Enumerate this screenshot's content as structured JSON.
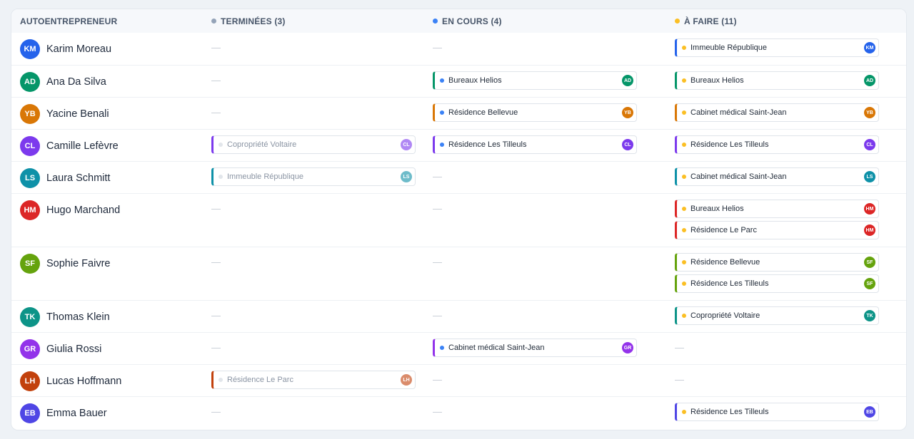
{
  "columns": {
    "person": {
      "label": "AUTOENTREPRENEUR"
    },
    "done": {
      "label": "TERMINÉES (3)",
      "color": "#94a3b8"
    },
    "progress": {
      "label": "EN COURS (4)",
      "color": "#3b82f6"
    },
    "todo": {
      "label": "À FAIRE (11)",
      "color": "#fbbf24"
    }
  },
  "empty_marker": "—",
  "people": [
    {
      "initials": "KM",
      "name": "Karim Moreau",
      "color": "#2563eb",
      "done": [],
      "progress": [],
      "todo": [
        "Immeuble République"
      ]
    },
    {
      "initials": "AD",
      "name": "Ana Da Silva",
      "color": "#059669",
      "done": [],
      "progress": [
        "Bureaux Helios"
      ],
      "todo": [
        "Bureaux Helios"
      ]
    },
    {
      "initials": "YB",
      "name": "Yacine Benali",
      "color": "#d97706",
      "done": [],
      "progress": [
        "Résidence Bellevue"
      ],
      "todo": [
        "Cabinet médical Saint-Jean"
      ]
    },
    {
      "initials": "CL",
      "name": "Camille Lefèvre",
      "color": "#7c3aed",
      "done": [
        "Copropriété Voltaire"
      ],
      "progress": [
        "Résidence Les Tilleuls"
      ],
      "todo": [
        "Résidence Les Tilleuls"
      ]
    },
    {
      "initials": "LS",
      "name": "Laura Schmitt",
      "color": "#0e91a8",
      "done": [
        "Immeuble République"
      ],
      "progress": [],
      "todo": [
        "Cabinet médical Saint-Jean"
      ]
    },
    {
      "initials": "HM",
      "name": "Hugo Marchand",
      "color": "#dc2626",
      "done": [],
      "progress": [],
      "todo": [
        "Bureaux Helios",
        "Résidence Le Parc"
      ]
    },
    {
      "initials": "SF",
      "name": "Sophie Faivre",
      "color": "#65a30d",
      "done": [],
      "progress": [],
      "todo": [
        "Résidence Bellevue",
        "Résidence Les Tilleuls"
      ]
    },
    {
      "initials": "TK",
      "name": "Thomas Klein",
      "color": "#0d9488",
      "done": [],
      "progress": [],
      "todo": [
        "Copropriété Voltaire"
      ]
    },
    {
      "initials": "GR",
      "name": "Giulia Rossi",
      "color": "#9333ea",
      "done": [],
      "progress": [
        "Cabinet médical Saint-Jean"
      ],
      "todo": []
    },
    {
      "initials": "LH",
      "name": "Lucas Hoffmann",
      "color": "#c2410c",
      "done": [
        "Résidence Le Parc"
      ],
      "progress": [],
      "todo": []
    },
    {
      "initials": "EB",
      "name": "Emma Bauer",
      "color": "#4f46e5",
      "done": [],
      "progress": [],
      "todo": [
        "Résidence Les Tilleuls"
      ]
    }
  ]
}
